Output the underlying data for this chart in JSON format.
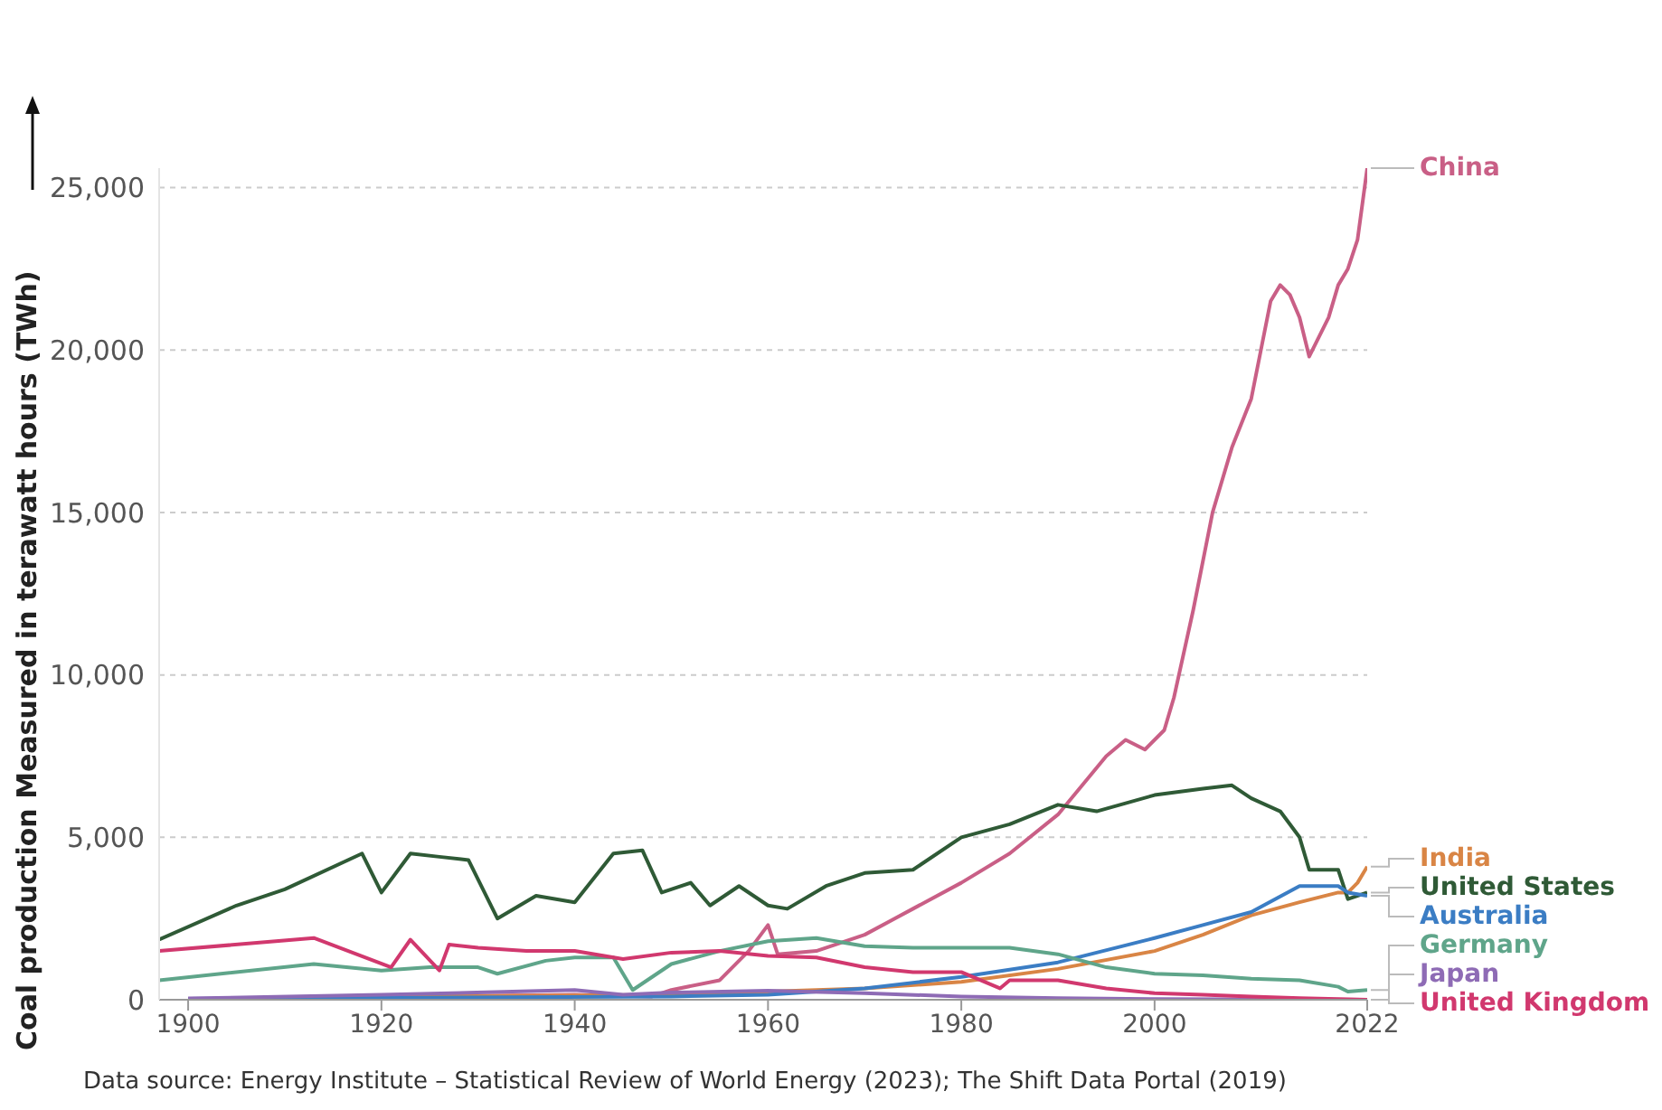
{
  "chart_data": {
    "type": "line",
    "ylabel": "Coal production Measured in terawatt hours (TWh)",
    "xlim": [
      1897,
      2022
    ],
    "xticks": [
      1900,
      1920,
      1940,
      1960,
      1980,
      2000,
      2022
    ],
    "ylim": [
      0,
      25600
    ],
    "yticks": [
      0,
      {
        "value": 5000,
        "label": "5,000"
      },
      {
        "value": 10000,
        "label": "10,000"
      },
      {
        "value": 15000,
        "label": "15,000"
      },
      {
        "value": 20000,
        "label": "20,000"
      },
      {
        "value": 25000,
        "label": "25,000"
      }
    ],
    "grid": "y",
    "marker": "none",
    "line_style": "solid",
    "series": [
      {
        "name": "China",
        "color": "#c95f86",
        "x": [
          1900,
          1920,
          1940,
          1948,
          1950,
          1955,
          1958,
          1960,
          1961,
          1965,
          1970,
          1975,
          1980,
          1985,
          1990,
          1995,
          1997,
          1999,
          2001,
          2002,
          2004,
          2006,
          2008,
          2010,
          2012,
          2013,
          2014,
          2015,
          2016,
          2018,
          2019,
          2020,
          2021,
          2022
        ],
        "values": [
          20,
          80,
          150,
          100,
          300,
          600,
          1500,
          2300,
          1400,
          1500,
          2000,
          2800,
          3600,
          4500,
          5700,
          7500,
          8000,
          7700,
          8300,
          9300,
          12000,
          15000,
          17000,
          18500,
          21500,
          22000,
          21700,
          21000,
          19800,
          21000,
          22000,
          22500,
          23400,
          25600
        ]
      },
      {
        "name": "India",
        "color": "#d98545",
        "x": [
          1900,
          1920,
          1950,
          1960,
          1970,
          1980,
          1990,
          2000,
          2005,
          2010,
          2015,
          2019,
          2020,
          2021,
          2022
        ],
        "values": [
          20,
          100,
          150,
          250,
          350,
          550,
          950,
          1500,
          2000,
          2600,
          3000,
          3300,
          3300,
          3600,
          4100
        ]
      },
      {
        "name": "United States",
        "color": "#2f5a36",
        "x": [
          1897,
          1905,
          1910,
          1918,
          1920,
          1923,
          1926,
          1929,
          1932,
          1936,
          1940,
          1944,
          1947,
          1949,
          1952,
          1954,
          1957,
          1960,
          1962,
          1966,
          1970,
          1975,
          1980,
          1985,
          1990,
          1994,
          2000,
          2005,
          2008,
          2010,
          2013,
          2015,
          2016,
          2019,
          2020,
          2022
        ],
        "values": [
          1850,
          2900,
          3400,
          4500,
          3300,
          4500,
          4400,
          4300,
          2500,
          3200,
          3000,
          4500,
          4600,
          3300,
          3600,
          2900,
          3500,
          2900,
          2800,
          3500,
          3900,
          4000,
          5000,
          5400,
          6000,
          5800,
          6300,
          6500,
          6600,
          6200,
          5800,
          5000,
          4000,
          4000,
          3100,
          3300
        ]
      },
      {
        "name": "Australia",
        "color": "#3b7dc4",
        "x": [
          1900,
          1950,
          1960,
          1970,
          1980,
          1990,
          2000,
          2005,
          2010,
          2015,
          2019,
          2020,
          2022
        ],
        "values": [
          30,
          100,
          150,
          350,
          700,
          1150,
          1900,
          2300,
          2700,
          3500,
          3500,
          3300,
          3200
        ]
      },
      {
        "name": "Germany",
        "color": "#5fa58a",
        "x": [
          1897,
          1913,
          1920,
          1925,
          1930,
          1932,
          1937,
          1940,
          1944,
          1946,
          1950,
          1955,
          1960,
          1965,
          1970,
          1975,
          1980,
          1985,
          1990,
          1995,
          2000,
          2005,
          2010,
          2015,
          2019,
          2020,
          2022
        ],
        "values": [
          600,
          1100,
          900,
          1000,
          1000,
          800,
          1200,
          1300,
          1300,
          300,
          1100,
          1500,
          1800,
          1900,
          1650,
          1600,
          1600,
          1600,
          1400,
          1000,
          800,
          750,
          650,
          600,
          400,
          250,
          300
        ]
      },
      {
        "name": "Japan",
        "color": "#8e6bb5",
        "x": [
          1900,
          1920,
          1940,
          1945,
          1950,
          1960,
          1970,
          1980,
          1990,
          2000,
          2022
        ],
        "values": [
          40,
          150,
          300,
          150,
          220,
          280,
          200,
          100,
          50,
          20,
          0
        ]
      },
      {
        "name": "United Kingdom",
        "color": "#d1386e",
        "x": [
          1897,
          1913,
          1921,
          1923,
          1926,
          1927,
          1930,
          1935,
          1940,
          1945,
          1950,
          1955,
          1960,
          1965,
          1970,
          1975,
          1980,
          1984,
          1985,
          1990,
          1995,
          2000,
          2005,
          2010,
          2015,
          2022
        ],
        "values": [
          1500,
          1900,
          1000,
          1850,
          900,
          1700,
          1600,
          1500,
          1500,
          1250,
          1450,
          1500,
          1350,
          1300,
          1000,
          850,
          850,
          350,
          600,
          600,
          350,
          200,
          150,
          100,
          50,
          0
        ]
      }
    ],
    "annotations": [
      "Data source: Energy Institute – Statistical Review of World Energy (2023); The Shift Data Portal (2019)"
    ]
  }
}
